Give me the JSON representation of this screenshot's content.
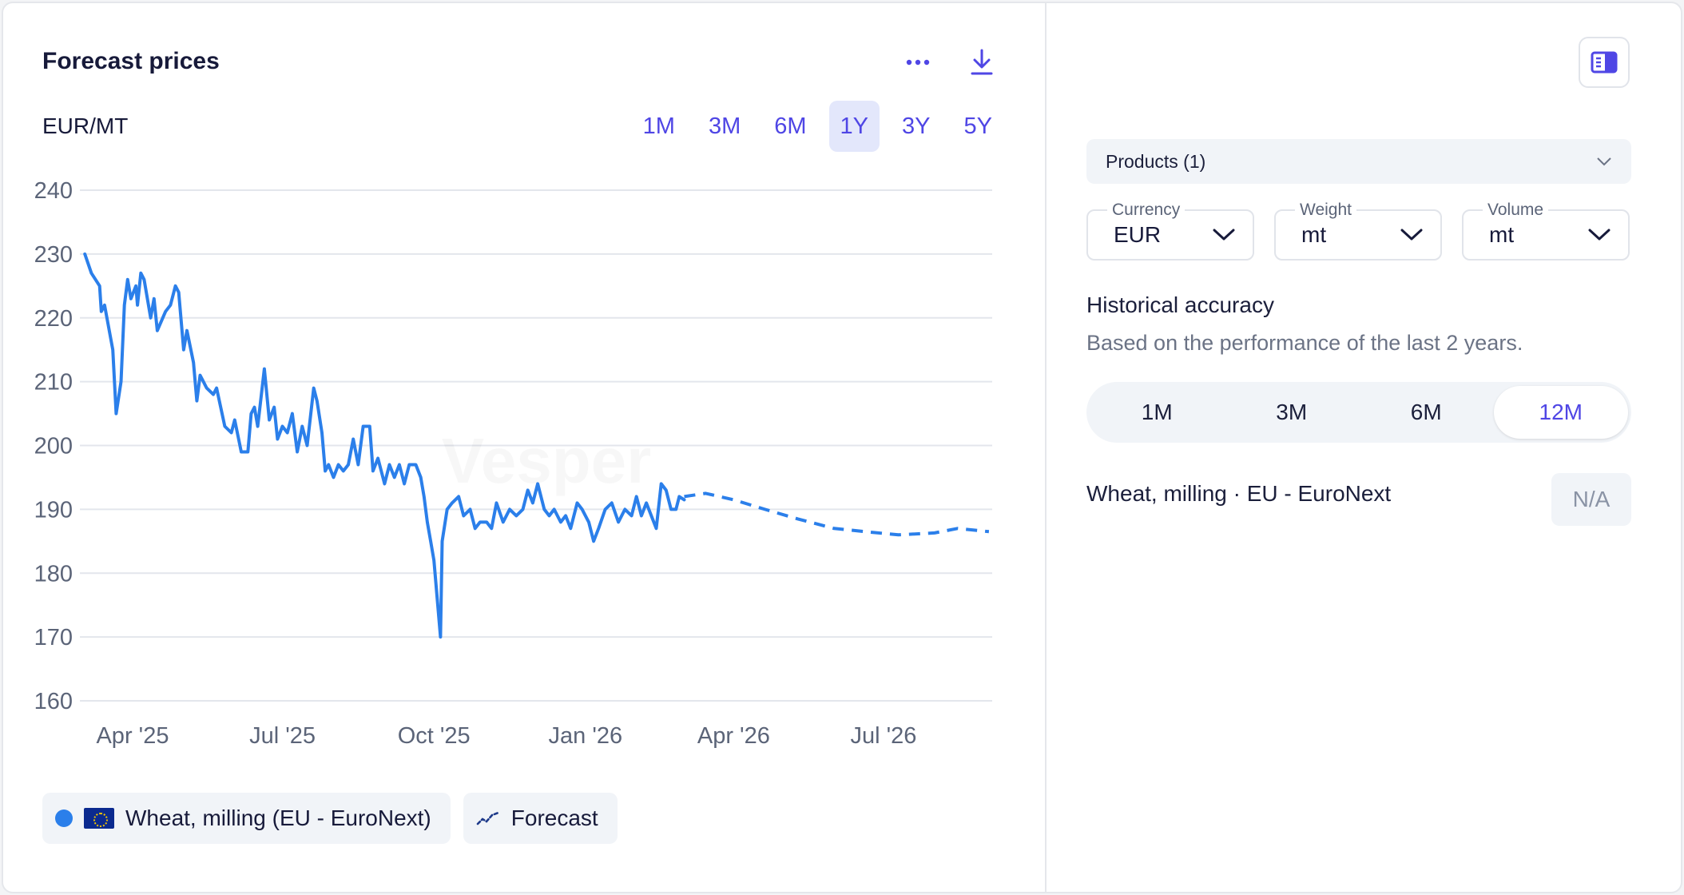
{
  "header": {
    "title": "Forecast prices",
    "unit": "EUR/MT",
    "more_icon": "more-horizontal-icon",
    "download_icon": "download-icon"
  },
  "ranges": [
    {
      "label": "1M",
      "active": false
    },
    {
      "label": "3M",
      "active": false
    },
    {
      "label": "6M",
      "active": false
    },
    {
      "label": "1Y",
      "active": true
    },
    {
      "label": "3Y",
      "active": false
    },
    {
      "label": "5Y",
      "active": false
    }
  ],
  "chart_data": {
    "type": "line",
    "title": "",
    "xlabel": "",
    "ylabel": "",
    "ylim": [
      160,
      240
    ],
    "yticks": [
      160,
      170,
      180,
      190,
      200,
      210,
      220,
      230,
      240
    ],
    "xlim": [
      "2025-02-28",
      "2026-09-05"
    ],
    "xticks": [
      {
        "date": "2025-04-01",
        "label": "Apr '25"
      },
      {
        "date": "2025-07-01",
        "label": "Jul '25"
      },
      {
        "date": "2025-10-01",
        "label": "Oct '25"
      },
      {
        "date": "2026-01-01",
        "label": "Jan '26"
      },
      {
        "date": "2026-04-01",
        "label": "Apr '26"
      },
      {
        "date": "2026-07-01",
        "label": "Jul '26"
      }
    ],
    "grid": true,
    "watermark": "Vesper",
    "series": [
      {
        "name": "Wheat, milling (EU - EuroNext)",
        "style": "solid",
        "color": "#2b7fea",
        "points": [
          [
            "2025-03-03",
            230
          ],
          [
            "2025-03-07",
            227
          ],
          [
            "2025-03-12",
            225
          ],
          [
            "2025-03-13",
            221
          ],
          [
            "2025-03-15",
            222
          ],
          [
            "2025-03-20",
            215
          ],
          [
            "2025-03-22",
            205
          ],
          [
            "2025-03-25",
            210
          ],
          [
            "2025-03-27",
            222
          ],
          [
            "2025-03-29",
            226
          ],
          [
            "2025-03-31",
            223
          ],
          [
            "2025-04-03",
            225
          ],
          [
            "2025-04-04",
            222
          ],
          [
            "2025-04-06",
            227
          ],
          [
            "2025-04-08",
            226
          ],
          [
            "2025-04-12",
            220
          ],
          [
            "2025-04-14",
            223
          ],
          [
            "2025-04-16",
            218
          ],
          [
            "2025-04-21",
            221
          ],
          [
            "2025-04-24",
            222
          ],
          [
            "2025-04-27",
            225
          ],
          [
            "2025-04-29",
            224
          ],
          [
            "2025-05-02",
            215
          ],
          [
            "2025-05-04",
            218
          ],
          [
            "2025-05-08",
            213
          ],
          [
            "2025-05-10",
            207
          ],
          [
            "2025-05-12",
            211
          ],
          [
            "2025-05-16",
            209
          ],
          [
            "2025-05-20",
            208
          ],
          [
            "2025-05-22",
            209
          ],
          [
            "2025-05-27",
            203
          ],
          [
            "2025-05-31",
            202
          ],
          [
            "2025-06-02",
            204
          ],
          [
            "2025-06-06",
            199
          ],
          [
            "2025-06-10",
            199
          ],
          [
            "2025-06-12",
            205
          ],
          [
            "2025-06-14",
            206
          ],
          [
            "2025-06-16",
            203
          ],
          [
            "2025-06-20",
            212
          ],
          [
            "2025-06-23",
            204
          ],
          [
            "2025-06-26",
            206
          ],
          [
            "2025-06-28",
            201
          ],
          [
            "2025-07-01",
            203
          ],
          [
            "2025-07-04",
            202
          ],
          [
            "2025-07-07",
            205
          ],
          [
            "2025-07-10",
            199
          ],
          [
            "2025-07-13",
            203
          ],
          [
            "2025-07-16",
            200
          ],
          [
            "2025-07-20",
            209
          ],
          [
            "2025-07-22",
            207
          ],
          [
            "2025-07-25",
            202
          ],
          [
            "2025-07-27",
            196
          ],
          [
            "2025-07-29",
            197
          ],
          [
            "2025-08-01",
            195
          ],
          [
            "2025-08-04",
            197
          ],
          [
            "2025-08-07",
            196
          ],
          [
            "2025-08-10",
            197
          ],
          [
            "2025-08-13",
            201
          ],
          [
            "2025-08-16",
            197
          ],
          [
            "2025-08-19",
            203
          ],
          [
            "2025-08-23",
            203
          ],
          [
            "2025-08-25",
            196
          ],
          [
            "2025-08-28",
            198
          ],
          [
            "2025-09-01",
            194
          ],
          [
            "2025-09-04",
            197
          ],
          [
            "2025-09-07",
            195
          ],
          [
            "2025-09-10",
            197
          ],
          [
            "2025-09-13",
            194
          ],
          [
            "2025-09-16",
            197
          ],
          [
            "2025-09-20",
            197
          ],
          [
            "2025-09-23",
            195
          ],
          [
            "2025-09-25",
            192
          ],
          [
            "2025-09-27",
            188
          ],
          [
            "2025-09-29",
            185
          ],
          [
            "2025-10-01",
            182
          ],
          [
            "2025-10-03",
            176
          ],
          [
            "2025-10-05",
            170
          ],
          [
            "2025-10-06",
            185
          ],
          [
            "2025-10-09",
            190
          ],
          [
            "2025-10-12",
            191
          ],
          [
            "2025-10-16",
            192
          ],
          [
            "2025-10-19",
            189
          ],
          [
            "2025-10-23",
            190
          ],
          [
            "2025-10-26",
            187
          ],
          [
            "2025-10-29",
            188
          ],
          [
            "2025-11-02",
            188
          ],
          [
            "2025-11-05",
            187
          ],
          [
            "2025-11-08",
            191
          ],
          [
            "2025-11-12",
            188
          ],
          [
            "2025-11-16",
            190
          ],
          [
            "2025-11-20",
            189
          ],
          [
            "2025-11-24",
            190
          ],
          [
            "2025-11-27",
            193
          ],
          [
            "2025-11-30",
            191
          ],
          [
            "2025-12-03",
            194
          ],
          [
            "2025-12-07",
            190
          ],
          [
            "2025-12-10",
            189
          ],
          [
            "2025-12-13",
            190
          ],
          [
            "2025-12-17",
            188
          ],
          [
            "2025-12-20",
            189
          ],
          [
            "2025-12-23",
            187
          ],
          [
            "2025-12-27",
            191
          ],
          [
            "2025-12-30",
            190
          ],
          [
            "2026-01-03",
            188
          ],
          [
            "2026-01-06",
            185
          ],
          [
            "2026-01-09",
            187
          ],
          [
            "2026-01-13",
            190
          ],
          [
            "2026-01-17",
            191
          ],
          [
            "2026-01-21",
            188
          ],
          [
            "2026-01-25",
            190
          ],
          [
            "2026-01-29",
            189
          ],
          [
            "2026-02-01",
            192
          ],
          [
            "2026-02-04",
            189
          ],
          [
            "2026-02-07",
            191
          ],
          [
            "2026-02-10",
            189
          ],
          [
            "2026-02-13",
            187
          ],
          [
            "2026-02-16",
            194
          ],
          [
            "2026-02-19",
            193
          ],
          [
            "2026-02-22",
            190
          ],
          [
            "2026-02-25",
            190
          ],
          [
            "2026-02-27",
            192
          ],
          [
            "2026-03-02",
            191.5
          ]
        ]
      },
      {
        "name": "Forecast",
        "style": "dashed",
        "color": "#2b7fea",
        "points": [
          [
            "2026-03-02",
            192
          ],
          [
            "2026-03-15",
            192.5
          ],
          [
            "2026-04-01",
            191.5
          ],
          [
            "2026-04-20",
            190
          ],
          [
            "2026-05-10",
            188.5
          ],
          [
            "2026-06-01",
            187
          ],
          [
            "2026-06-20",
            186.5
          ],
          [
            "2026-07-10",
            186
          ],
          [
            "2026-08-01",
            186.3
          ],
          [
            "2026-08-15",
            187
          ],
          [
            "2026-09-03",
            186.5
          ]
        ]
      }
    ]
  },
  "legend": {
    "items": [
      {
        "label": "Wheat, milling (EU - EuroNext)",
        "dot_color": "#2b7fea",
        "icon": "eu-flag-icon"
      },
      {
        "label": "Forecast",
        "icon": "forecast-line-icon"
      }
    ]
  },
  "side": {
    "toggle_icon": "panel-toggle-icon",
    "products": {
      "label": "Products (1)"
    },
    "selects": [
      {
        "label": "Currency",
        "value": "EUR"
      },
      {
        "label": "Weight",
        "value": "mt"
      },
      {
        "label": "Volume",
        "value": "mt"
      }
    ],
    "accuracy": {
      "title": "Historical accuracy",
      "subtitle": "Based on the performance of the last 2 years.",
      "periods": [
        {
          "label": "1M",
          "active": false
        },
        {
          "label": "3M",
          "active": false
        },
        {
          "label": "6M",
          "active": false
        },
        {
          "label": "12M",
          "active": true
        }
      ],
      "product": "Wheat, milling · EU - EuroNext",
      "value": "N/A"
    }
  }
}
